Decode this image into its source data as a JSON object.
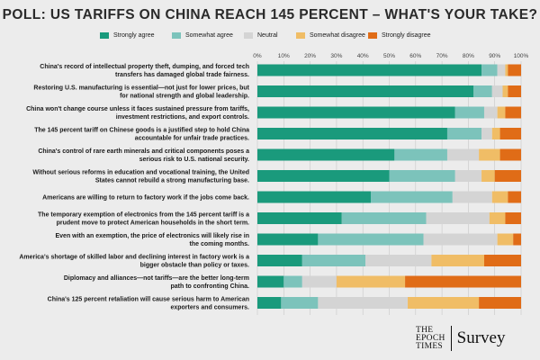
{
  "title": "POLL: US TARIFFS ON CHINA REACH 145 PERCENT – WHAT'S YOUR TAKE?",
  "legend": [
    {
      "label": "Strongly agree",
      "color": "#1a9a7c"
    },
    {
      "label": "Somewhat agree",
      "color": "#7cc3bb"
    },
    {
      "label": "Neutral",
      "color": "#d4d4d4"
    },
    {
      "label": "Somewhat disagree",
      "color": "#f0bd66"
    },
    {
      "label": "Strongly disagree",
      "color": "#e06c17"
    }
  ],
  "logo": {
    "line1": "THE",
    "line2": "EPOCH",
    "line3": "TIMES",
    "word": "Survey"
  },
  "chart_data": {
    "type": "bar",
    "orientation": "horizontal",
    "stacked": true,
    "xlim": [
      0,
      100
    ],
    "xticks": [
      "0%",
      "10%",
      "20%",
      "30%",
      "40%",
      "50%",
      "60%",
      "70%",
      "80%",
      "90%",
      "100%"
    ],
    "categories": [
      "China's record of intellectual property theft, dumping, and forced tech transfers has damaged global trade fairness.",
      "Restoring U.S. manufacturing is essential—not just for lower prices, but for national strength and global leadership.",
      "China won't change course unless it faces sustained pressure from tariffs, investment restrictions, and export controls.",
      "The 145 percent tariff on Chinese goods is a justified step to hold China accountable for unfair trade practices.",
      "China's control of rare earth minerals and critical components poses a serious risk to U.S. national security.",
      "Without serious reforms in education and vocational training, the United States cannot rebuild a strong manufacturing base.",
      "Americans are willing to return to factory work if the jobs come back.",
      "The temporary exemption of electronics from the 145 percent tariff is a prudent move to protect American households in the short term.",
      "Even with an exemption, the price of electronics will likely rise in the coming months.",
      "America's shortage of skilled labor and declining interest in factory work is a bigger obstacle than policy or taxes.",
      "Diplomacy and alliances—not tariffs—are the better long-term path to confronting China.",
      "China's 125 percent retaliation will cause serious harm to American exporters and consumers."
    ],
    "label_lines": [
      [
        "China's record of intellectual property theft, dumping, and forced tech",
        "transfers has damaged global trade fairness."
      ],
      [
        "Restoring U.S. manufacturing is essential—not just for lower prices, but",
        "for national strength and global leadership."
      ],
      [
        "China won't change course unless it faces sustained pressure from tariffs,",
        "investment restrictions, and export controls."
      ],
      [
        "The 145 percent tariff on Chinese goods is a justified step to hold China",
        "accountable for unfair trade practices."
      ],
      [
        "China's control of rare earth minerals and critical components poses a",
        "serious risk to U.S. national security."
      ],
      [
        "Without serious reforms in education and vocational training, the United",
        "States cannot rebuild a strong manufacturing base."
      ],
      [
        "Americans are willing to return to factory work if the jobs come back."
      ],
      [
        "The temporary exemption of electronics from the 145 percent tariff is a",
        "prudent move to protect American households in the short term."
      ],
      [
        "Even with an exemption, the price of electronics will likely rise in",
        "the coming months."
      ],
      [
        "America's shortage of skilled labor and declining interest in factory work is a",
        "bigger obstacle than policy or taxes."
      ],
      [
        "Diplomacy and alliances—not tariffs—are the better long-term",
        "path to confronting China."
      ],
      [
        "China's 125 percent retaliation will cause serious harm to American",
        "exporters and consumers."
      ]
    ],
    "series": [
      {
        "name": "Strongly agree",
        "values": [
          85,
          82,
          75,
          72,
          52,
          50,
          43,
          32,
          23,
          17,
          10,
          9
        ]
      },
      {
        "name": "Somewhat agree",
        "values": [
          6,
          7,
          11,
          13,
          20,
          25,
          31,
          32,
          40,
          24,
          7,
          14
        ]
      },
      {
        "name": "Neutral",
        "values": [
          3,
          4,
          5,
          4,
          12,
          10,
          15,
          24,
          28,
          25,
          13,
          34
        ]
      },
      {
        "name": "Somewhat disagree",
        "values": [
          1,
          2,
          3,
          3,
          8,
          5,
          6,
          6,
          6,
          20,
          26,
          27
        ]
      },
      {
        "name": "Strongly disagree",
        "values": [
          5,
          5,
          6,
          8,
          8,
          10,
          5,
          6,
          3,
          14,
          44,
          16
        ]
      }
    ]
  }
}
